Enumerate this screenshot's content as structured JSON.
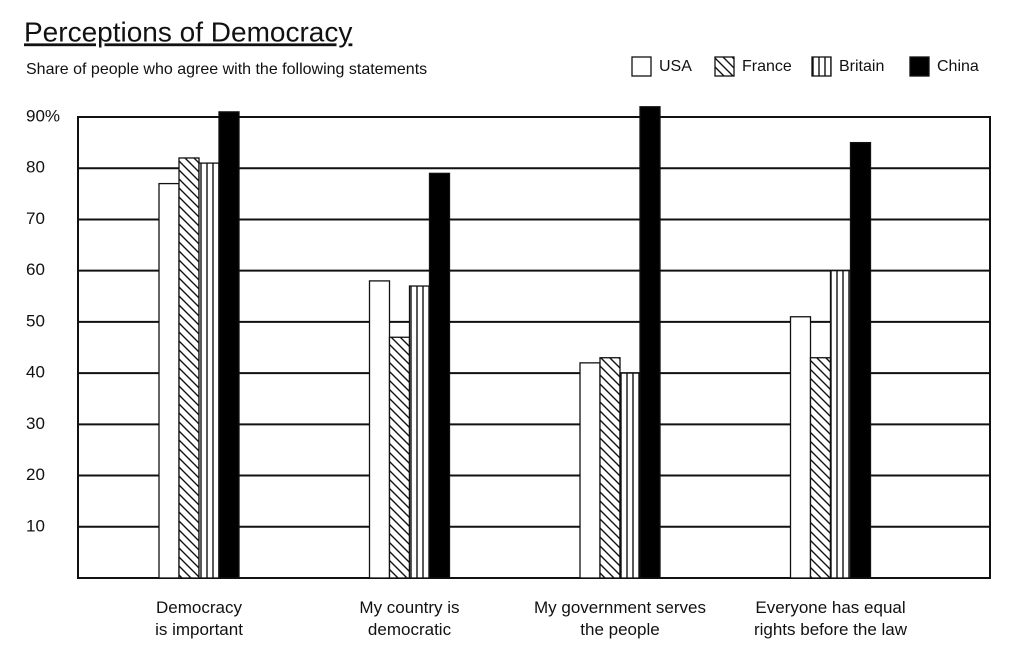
{
  "chart_data": {
    "type": "bar",
    "title": "Perceptions of Democracy",
    "subtitle": "Share of people who agree with the following statements",
    "categories": [
      "Democracy\nis important",
      "My country is\ndemocratic",
      "My government serves\nthe people",
      "Everyone has equal\nrights before the law"
    ],
    "series": [
      {
        "name": "USA",
        "color": "#ffffff",
        "values": [
          77,
          58,
          42,
          51
        ]
      },
      {
        "name": "France",
        "color": "diagonal-hatch",
        "values": [
          82,
          47,
          43,
          43
        ]
      },
      {
        "name": "Britain",
        "color": "vertical-hatch",
        "values": [
          81,
          57,
          40,
          60
        ]
      },
      {
        "name": "China",
        "color": "#000000",
        "values": [
          91,
          79,
          92,
          85
        ]
      }
    ],
    "ylim": [
      0,
      90
    ],
    "yticks": [
      10,
      20,
      30,
      40,
      50,
      60,
      70,
      80,
      {
        "value": 90,
        "label": "90%"
      }
    ],
    "grid": true,
    "legend": "top-right"
  }
}
